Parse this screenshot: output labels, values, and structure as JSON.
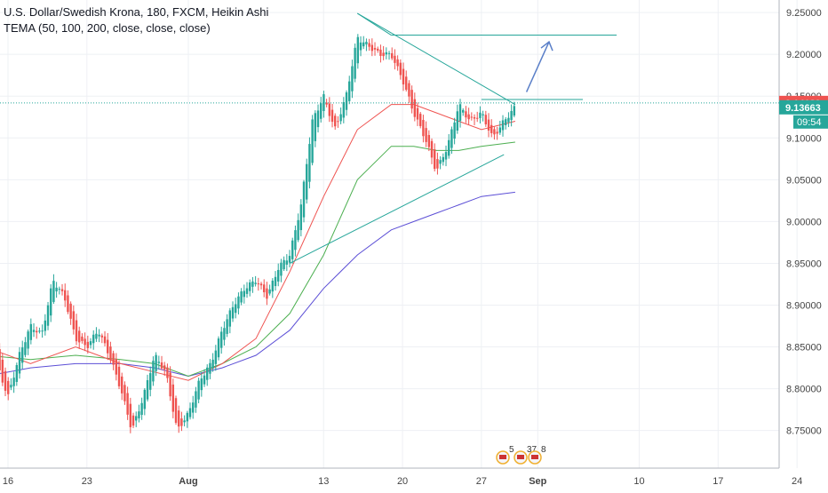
{
  "chart_data": {
    "type": "candlestick",
    "title": "U.S. Dollar/Swedish Krona, 180, FXCM, Heikin Ashi",
    "indicator": "TEMA (50, 100, 200, close, close, close)",
    "ylim": [
      8.705,
      9.265
    ],
    "y_ticks": [
      "9.25000",
      "9.20000",
      "9.15000",
      "9.10000",
      "9.05000",
      "9.00000",
      "8.95000",
      "8.90000",
      "8.85000",
      "8.80000",
      "8.75000"
    ],
    "x_ticks": [
      "16",
      "23",
      "Aug",
      "13",
      "20",
      "27",
      "Sep",
      "10",
      "17",
      "24"
    ],
    "last_price": "9.14189",
    "current_price": "9.13663",
    "countdown": "09:54",
    "events": {
      "e1": "5",
      "e2": "37",
      "e3": "8"
    },
    "colors": {
      "up": "#26a69a",
      "down": "#ef5350",
      "tema50": "#ef5350",
      "tema100": "#4caf50",
      "tema200": "#5c4fd6",
      "drawing": "#26a69a",
      "arrow": "#5a7fc8"
    },
    "path": [
      [
        "2018-07-14",
        8.905
      ],
      [
        "2018-07-15",
        8.83
      ],
      [
        "2018-07-16",
        8.79
      ],
      [
        "2018-07-17",
        8.84
      ],
      [
        "2018-07-18",
        8.875
      ],
      [
        "2018-07-19",
        8.865
      ],
      [
        "2018-07-20",
        8.93
      ],
      [
        "2018-07-21",
        8.91
      ],
      [
        "2018-07-22",
        8.86
      ],
      [
        "2018-07-23",
        8.85
      ],
      [
        "2018-07-24",
        8.87
      ],
      [
        "2018-07-25",
        8.84
      ],
      [
        "2018-07-26",
        8.8
      ],
      [
        "2018-07-27",
        8.75
      ],
      [
        "2018-07-28",
        8.79
      ],
      [
        "2018-07-29",
        8.84
      ],
      [
        "2018-07-30",
        8.82
      ],
      [
        "2018-07-31",
        8.75
      ],
      [
        "2018-08-01",
        8.77
      ],
      [
        "2018-08-02",
        8.81
      ],
      [
        "2018-08-03",
        8.83
      ],
      [
        "2018-08-04",
        8.87
      ],
      [
        "2018-08-05",
        8.9
      ],
      [
        "2018-08-06",
        8.92
      ],
      [
        "2018-08-07",
        8.93
      ],
      [
        "2018-08-08",
        8.91
      ],
      [
        "2018-08-09",
        8.945
      ],
      [
        "2018-08-10",
        8.96
      ],
      [
        "2018-08-11",
        9.02
      ],
      [
        "2018-08-12",
        9.12
      ],
      [
        "2018-08-13",
        9.15
      ],
      [
        "2018-08-14",
        9.11
      ],
      [
        "2018-08-15",
        9.15
      ],
      [
        "2018-08-16",
        9.22
      ],
      [
        "2018-08-17",
        9.21
      ],
      [
        "2018-08-18",
        9.2
      ],
      [
        "2018-08-19",
        9.2
      ],
      [
        "2018-08-20",
        9.17
      ],
      [
        "2018-08-21",
        9.13
      ],
      [
        "2018-08-22",
        9.1
      ],
      [
        "2018-08-23",
        9.06
      ],
      [
        "2018-08-24",
        9.09
      ],
      [
        "2018-08-25",
        9.14
      ],
      [
        "2018-08-26",
        9.12
      ],
      [
        "2018-08-27",
        9.13
      ],
      [
        "2018-08-28",
        9.1
      ],
      [
        "2018-08-29",
        9.12
      ],
      [
        "2018-08-30",
        9.137
      ]
    ],
    "tema50": [
      [
        "2018-07-14",
        8.85
      ],
      [
        "2018-07-18",
        8.83
      ],
      [
        "2018-07-22",
        8.85
      ],
      [
        "2018-07-26",
        8.83
      ],
      [
        "2018-07-29",
        8.82
      ],
      [
        "2018-08-01",
        8.81
      ],
      [
        "2018-08-04",
        8.83
      ],
      [
        "2018-08-07",
        8.86
      ],
      [
        "2018-08-10",
        8.94
      ],
      [
        "2018-08-13",
        9.03
      ],
      [
        "2018-08-16",
        9.11
      ],
      [
        "2018-08-19",
        9.14
      ],
      [
        "2018-08-21",
        9.14
      ],
      [
        "2018-08-23",
        9.13
      ],
      [
        "2018-08-25",
        9.12
      ],
      [
        "2018-08-27",
        9.11
      ],
      [
        "2018-08-30",
        9.12
      ]
    ],
    "tema100": [
      [
        "2018-07-14",
        8.84
      ],
      [
        "2018-07-18",
        8.835
      ],
      [
        "2018-07-22",
        8.84
      ],
      [
        "2018-07-26",
        8.835
      ],
      [
        "2018-07-29",
        8.83
      ],
      [
        "2018-08-01",
        8.815
      ],
      [
        "2018-08-04",
        8.83
      ],
      [
        "2018-08-07",
        8.85
      ],
      [
        "2018-08-10",
        8.89
      ],
      [
        "2018-08-13",
        8.96
      ],
      [
        "2018-08-16",
        9.05
      ],
      [
        "2018-08-19",
        9.09
      ],
      [
        "2018-08-21",
        9.09
      ],
      [
        "2018-08-23",
        9.085
      ],
      [
        "2018-08-25",
        9.085
      ],
      [
        "2018-08-27",
        9.09
      ],
      [
        "2018-08-30",
        9.095
      ]
    ],
    "tema200": [
      [
        "2018-07-14",
        8.815
      ],
      [
        "2018-07-18",
        8.825
      ],
      [
        "2018-07-22",
        8.83
      ],
      [
        "2018-07-26",
        8.83
      ],
      [
        "2018-07-29",
        8.825
      ],
      [
        "2018-08-01",
        8.815
      ],
      [
        "2018-08-04",
        8.825
      ],
      [
        "2018-08-07",
        8.84
      ],
      [
        "2018-08-10",
        8.87
      ],
      [
        "2018-08-13",
        8.92
      ],
      [
        "2018-08-16",
        8.96
      ],
      [
        "2018-08-19",
        8.99
      ],
      [
        "2018-08-21",
        9.0
      ],
      [
        "2018-08-23",
        9.01
      ],
      [
        "2018-08-25",
        9.02
      ],
      [
        "2018-08-27",
        9.03
      ],
      [
        "2018-08-30",
        9.035
      ]
    ],
    "drawings": {
      "upper_trendline": [
        [
          "2018-08-16",
          9.249
        ],
        [
          "2018-08-30",
          9.14
        ]
      ],
      "lower_trendline": [
        [
          "2018-08-10",
          8.95
        ],
        [
          "2018-08-29",
          9.08
        ]
      ],
      "resistance_line": [
        [
          "2018-08-27",
          9.146
        ],
        [
          "2018-09-05",
          9.146
        ]
      ],
      "target_line": [
        [
          "2018-08-19",
          9.223
        ],
        [
          "2018-09-08",
          9.223
        ]
      ],
      "arrow": [
        [
          "2018-08-31",
          9.155
        ],
        [
          "2018-09-02",
          9.215
        ]
      ]
    }
  }
}
